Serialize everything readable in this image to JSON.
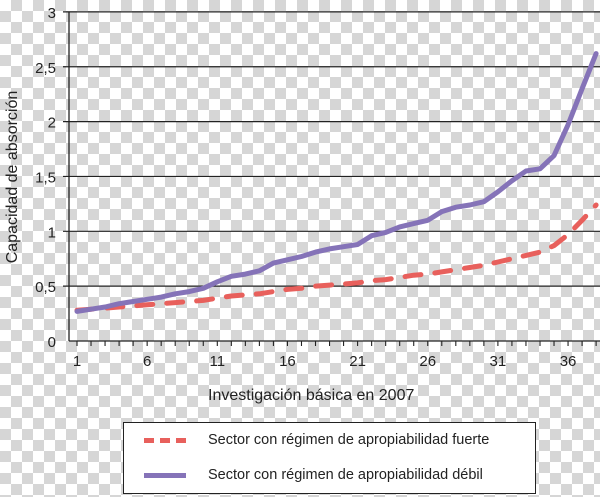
{
  "chart_data": {
    "type": "line",
    "title": "",
    "xlabel": "Investigación básica en 2007",
    "ylabel": "Capacidad de absorción",
    "ylim": [
      0,
      3
    ],
    "xlim": [
      1,
      38
    ],
    "yticks": [
      "0",
      "0,5",
      "1",
      "1,5",
      "2",
      "2,5",
      "3"
    ],
    "xticks": [
      "1",
      "6",
      "11",
      "16",
      "21",
      "26",
      "31",
      "36"
    ],
    "grid": "horizontal",
    "legend_position": "bottom",
    "x": [
      1,
      2,
      3,
      4,
      5,
      6,
      7,
      8,
      9,
      10,
      11,
      12,
      13,
      14,
      15,
      16,
      17,
      18,
      19,
      20,
      21,
      22,
      23,
      24,
      25,
      26,
      27,
      28,
      29,
      30,
      31,
      32,
      33,
      34,
      35,
      36,
      37,
      38
    ],
    "series": [
      {
        "name": "Sector con régimen de apropiabilidad fuerte",
        "style": "dashed",
        "color": "#e8605c",
        "values": [
          0.28,
          0.29,
          0.3,
          0.31,
          0.32,
          0.33,
          0.34,
          0.35,
          0.36,
          0.37,
          0.39,
          0.41,
          0.42,
          0.43,
          0.45,
          0.47,
          0.48,
          0.5,
          0.51,
          0.52,
          0.53,
          0.55,
          0.56,
          0.58,
          0.6,
          0.61,
          0.63,
          0.65,
          0.67,
          0.69,
          0.72,
          0.75,
          0.78,
          0.81,
          0.87,
          0.97,
          1.1,
          1.24
        ]
      },
      {
        "name": "Sector con régimen de apropiabilidad débil",
        "style": "solid",
        "color": "#8573b8",
        "values": [
          0.27,
          0.29,
          0.31,
          0.34,
          0.36,
          0.38,
          0.4,
          0.43,
          0.45,
          0.48,
          0.54,
          0.59,
          0.61,
          0.64,
          0.71,
          0.74,
          0.77,
          0.81,
          0.84,
          0.86,
          0.88,
          0.96,
          0.99,
          1.04,
          1.07,
          1.1,
          1.18,
          1.22,
          1.24,
          1.27,
          1.36,
          1.46,
          1.55,
          1.57,
          1.69,
          1.97,
          2.3,
          2.62
        ]
      }
    ]
  },
  "legend": {
    "items": [
      {
        "label": "Sector con régimen de apropiabilidad fuerte"
      },
      {
        "label": "Sector con régimen de apropiabilidad débil"
      }
    ]
  }
}
